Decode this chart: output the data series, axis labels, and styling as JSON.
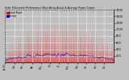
{
  "title": "Solar PV/Inverter Performance West Array Actual & Average Power Output",
  "legend": [
    "Actual Power",
    "Average"
  ],
  "bg_color": "#c0c0c0",
  "plot_bg": "#c0c0c0",
  "bar_color": "#ff0000",
  "avg_color": "#0000cc",
  "ylim": [
    0,
    1600
  ],
  "yticks": [
    200,
    400,
    600,
    800,
    1000,
    1200,
    1400,
    1600
  ],
  "grid_color": "#ffffff",
  "num_days": 365,
  "points_per_day": 24
}
